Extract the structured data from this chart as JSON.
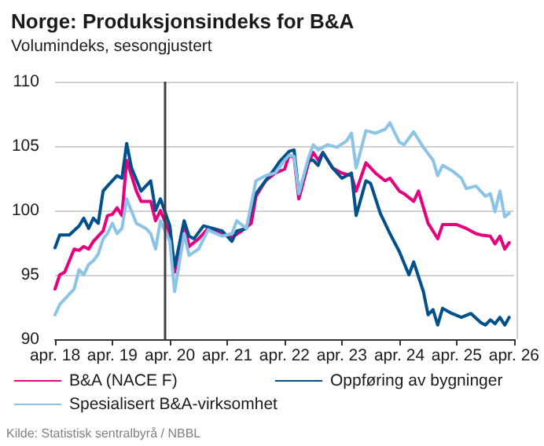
{
  "chart_data": {
    "type": "line",
    "title": "Norge: Produksjonsindeks for B&A",
    "subtitle": "Volumindeks, sesongjustert",
    "annotations": [
      "Kilde: Statistisk sentralbyrå / NBBL"
    ],
    "xlim": [
      "2018-04",
      "2026-04"
    ],
    "xticks": [
      {
        "value": "2018-04",
        "label": "apr. 18"
      },
      {
        "value": "2019-04",
        "label": "apr. 19"
      },
      {
        "value": "2020-04",
        "label": "apr. 20"
      },
      {
        "value": "2021-04",
        "label": "apr. 21"
      },
      {
        "value": "2022-04",
        "label": "apr. 22"
      },
      {
        "value": "2023-04",
        "label": "apr. 23"
      },
      {
        "value": "2024-04",
        "label": "apr. 24"
      },
      {
        "value": "2025-04",
        "label": "apr. 25"
      },
      {
        "value": "2026-04",
        "label": "apr. 26"
      }
    ],
    "ylim": [
      90,
      110
    ],
    "yticks": [
      90,
      95,
      100,
      105,
      110
    ],
    "grid": "y",
    "legend": "bottom",
    "marker": "none",
    "line_style": "solid",
    "ref_lines": [
      {
        "axis": "x",
        "value": "2020-03",
        "label": null,
        "color": "#404040"
      }
    ],
    "series": [
      {
        "name": "B&A (NACE F)",
        "color": "#e6007e",
        "x": [
          "2018-04",
          "2018-05",
          "2018-06",
          "2018-08",
          "2018-09",
          "2018-10",
          "2018-11",
          "2018-12",
          "2019-02",
          "2019-03",
          "2019-04",
          "2019-05",
          "2019-06",
          "2019-07",
          "2019-09",
          "2019-10",
          "2019-12",
          "2020-01",
          "2020-02",
          "2020-04",
          "2020-05",
          "2020-07",
          "2020-08",
          "2020-10",
          "2020-12",
          "2021-01",
          "2021-03",
          "2021-05",
          "2021-07",
          "2021-09",
          "2021-10",
          "2021-12",
          "2022-02",
          "2022-04",
          "2022-05",
          "2022-06",
          "2022-07",
          "2022-09",
          "2022-10",
          "2022-11",
          "2022-12",
          "2023-02",
          "2023-04",
          "2023-06",
          "2023-07",
          "2023-09",
          "2023-11",
          "2024-01",
          "2024-02",
          "2024-04",
          "2024-05",
          "2024-07",
          "2024-08",
          "2024-10",
          "2024-11",
          "2024-12",
          "2025-01",
          "2025-04",
          "2025-06",
          "2025-08",
          "2025-09",
          "2025-11",
          "2025-12",
          "2026-01",
          "2026-02",
          "2026-03"
        ],
        "values": [
          93.9,
          95.0,
          95.2,
          97.0,
          96.9,
          97.2,
          97.0,
          97.6,
          98.4,
          99.6,
          99.7,
          100.2,
          99.6,
          103.9,
          101.5,
          100.7,
          100.7,
          99.2,
          100.0,
          98.2,
          95.2,
          99.0,
          97.2,
          97.8,
          98.6,
          98.5,
          98.2,
          97.9,
          98.4,
          99.0,
          101.1,
          102.3,
          102.9,
          103.2,
          104.3,
          104.1,
          100.9,
          103.7,
          104.5,
          103.9,
          104.5,
          103.3,
          102.9,
          102.7,
          101.5,
          103.7,
          102.9,
          102.3,
          102.5,
          101.5,
          101.3,
          100.7,
          101.5,
          99.0,
          98.4,
          97.8,
          98.9,
          98.9,
          98.6,
          98.2,
          98.1,
          98.0,
          97.4,
          98.0,
          97.0,
          97.5
        ]
      },
      {
        "name": "Oppføring av bygninger",
        "color": "#00508c",
        "x": [
          "2018-04",
          "2018-05",
          "2018-07",
          "2018-09",
          "2018-10",
          "2018-11",
          "2018-12",
          "2019-01",
          "2019-02",
          "2019-03",
          "2019-05",
          "2019-06",
          "2019-07",
          "2019-08",
          "2019-10",
          "2019-12",
          "2020-01",
          "2020-02",
          "2020-04",
          "2020-05",
          "2020-07",
          "2020-08",
          "2020-09",
          "2020-11",
          "2021-01",
          "2021-03",
          "2021-05",
          "2021-06",
          "2021-08",
          "2021-10",
          "2021-12",
          "2022-02",
          "2022-03",
          "2022-05",
          "2022-06",
          "2022-07",
          "2022-09",
          "2022-10",
          "2022-11",
          "2022-12",
          "2023-02",
          "2023-04",
          "2023-06",
          "2023-07",
          "2023-09",
          "2023-10",
          "2023-12",
          "2024-02",
          "2024-04",
          "2024-06",
          "2024-07",
          "2024-09",
          "2024-10",
          "2024-11",
          "2024-12",
          "2025-01",
          "2025-03",
          "2025-05",
          "2025-07",
          "2025-09",
          "2025-10",
          "2025-11",
          "2025-12",
          "2026-01",
          "2026-02",
          "2026-03"
        ],
        "values": [
          97.1,
          98.1,
          98.1,
          98.8,
          99.4,
          98.6,
          99.4,
          99.0,
          101.5,
          101.9,
          102.7,
          102.5,
          105.2,
          103.3,
          101.5,
          102.3,
          100.0,
          100.9,
          98.8,
          95.6,
          99.2,
          98.0,
          97.8,
          98.8,
          98.6,
          98.4,
          97.6,
          98.4,
          98.6,
          101.3,
          102.3,
          103.3,
          103.8,
          104.6,
          104.7,
          101.3,
          103.9,
          103.9,
          103.5,
          104.5,
          103.3,
          102.5,
          102.9,
          99.6,
          102.3,
          102.1,
          99.8,
          98.2,
          96.8,
          95.0,
          96.0,
          93.7,
          91.9,
          92.3,
          91.1,
          92.4,
          92.0,
          91.7,
          92.0,
          91.3,
          91.1,
          91.5,
          91.2,
          91.7,
          91.1,
          91.7
        ]
      },
      {
        "name": "Spesialisert B&A-virksomhet",
        "color": "#8cc4e8",
        "x": [
          "2018-04",
          "2018-05",
          "2018-07",
          "2018-08",
          "2018-09",
          "2018-10",
          "2018-11",
          "2018-12",
          "2019-01",
          "2019-02",
          "2019-03",
          "2019-04",
          "2019-05",
          "2019-06",
          "2019-07",
          "2019-09",
          "2019-11",
          "2019-12",
          "2020-01",
          "2020-02",
          "2020-04",
          "2020-05",
          "2020-07",
          "2020-08",
          "2020-10",
          "2020-12",
          "2021-01",
          "2021-03",
          "2021-05",
          "2021-06",
          "2021-08",
          "2021-10",
          "2021-12",
          "2022-02",
          "2022-04",
          "2022-05",
          "2022-06",
          "2022-07",
          "2022-09",
          "2022-10",
          "2022-11",
          "2023-01",
          "2023-03",
          "2023-05",
          "2023-06",
          "2023-07",
          "2023-09",
          "2023-11",
          "2024-01",
          "2024-02",
          "2024-04",
          "2024-05",
          "2024-07",
          "2024-09",
          "2024-11",
          "2024-12",
          "2025-01",
          "2025-03",
          "2025-05",
          "2025-06",
          "2025-08",
          "2025-10",
          "2025-11",
          "2025-12",
          "2026-01",
          "2026-02",
          "2026-03"
        ],
        "values": [
          91.9,
          92.7,
          93.5,
          93.9,
          95.4,
          95.0,
          95.8,
          96.1,
          96.6,
          97.8,
          98.2,
          99.0,
          98.2,
          98.6,
          100.9,
          99.0,
          98.6,
          98.2,
          97.0,
          99.2,
          97.6,
          93.7,
          98.2,
          96.5,
          97.0,
          98.5,
          98.3,
          98.0,
          98.2,
          99.2,
          98.6,
          102.3,
          102.7,
          102.9,
          103.9,
          104.3,
          104.2,
          101.3,
          104.1,
          105.1,
          104.7,
          105.1,
          104.9,
          105.4,
          106.0,
          103.3,
          106.2,
          106.0,
          106.3,
          106.8,
          105.3,
          105.1,
          106.1,
          104.9,
          103.9,
          102.7,
          103.5,
          103.1,
          102.5,
          101.7,
          101.9,
          101.1,
          101.3,
          99.9,
          101.5,
          99.5,
          99.8
        ]
      }
    ]
  }
}
